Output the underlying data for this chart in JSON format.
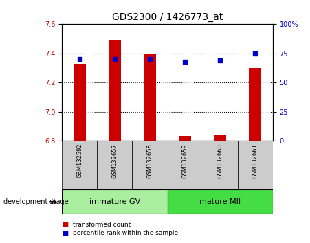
{
  "title": "GDS2300 / 1426773_at",
  "samples": [
    "GSM132592",
    "GSM132657",
    "GSM132658",
    "GSM132659",
    "GSM132660",
    "GSM132661"
  ],
  "transformed_count": [
    7.33,
    7.49,
    7.4,
    6.835,
    6.845,
    7.3
  ],
  "percentile_rank": [
    70,
    70.5,
    70,
    68,
    69,
    75
  ],
  "bar_base": 6.8,
  "ylim_left": [
    6.8,
    7.6
  ],
  "ylim_right": [
    0,
    100
  ],
  "yticks_left": [
    6.8,
    7.0,
    7.2,
    7.4,
    7.6
  ],
  "yticks_right": [
    0,
    25,
    50,
    75,
    100
  ],
  "ytick_labels_right": [
    "0",
    "25",
    "50",
    "75",
    "100%"
  ],
  "left_tick_color": "#cc0000",
  "bar_color": "#cc0000",
  "dot_color": "#0000cc",
  "group1_label": "immature GV",
  "group2_label": "mature MII",
  "group1_bg": "#aaeea0",
  "group2_bg": "#44dd44",
  "sample_bg": "#cccccc",
  "legend_bar_label": "transformed count",
  "legend_dot_label": "percentile rank within the sample",
  "stage_label": "development stage",
  "bar_width": 0.35,
  "title_fontsize": 10,
  "tick_fontsize": 7,
  "label_fontsize": 7,
  "sample_fontsize": 6,
  "group_fontsize": 8
}
